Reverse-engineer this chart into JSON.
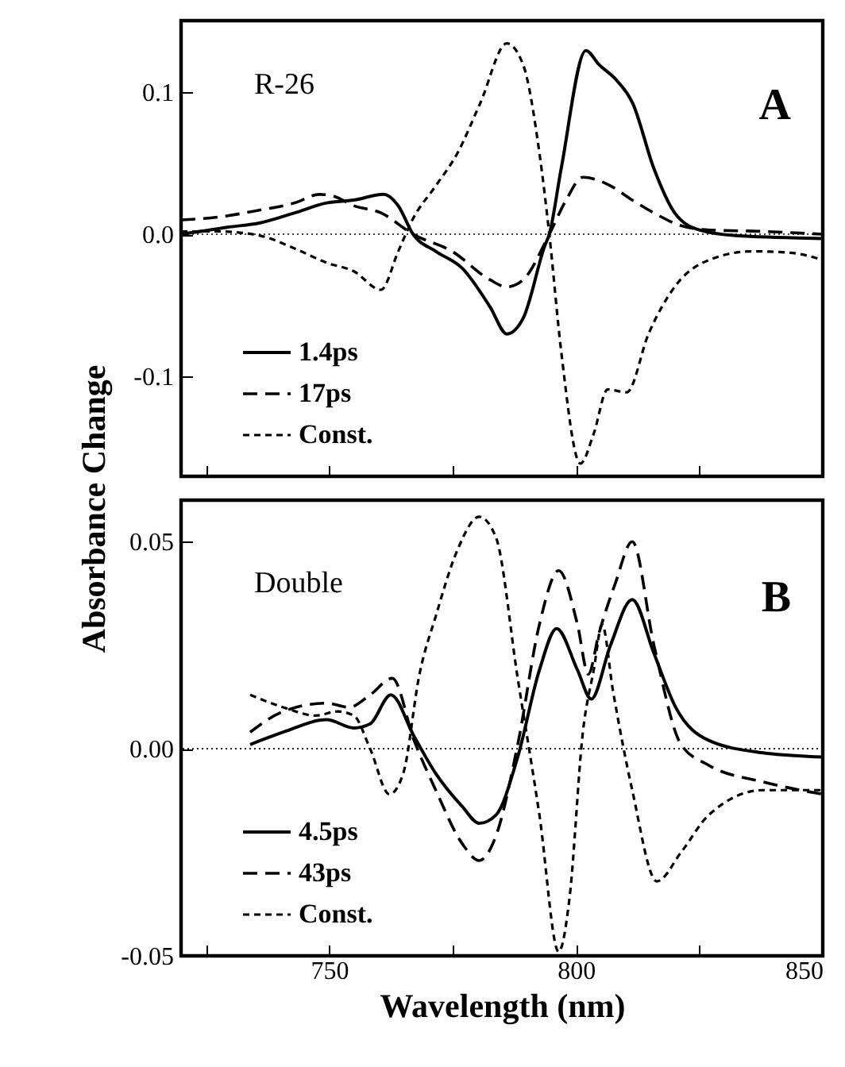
{
  "chart_data": [
    {
      "type": "line",
      "ylabel": "Absorbance Change",
      "annotations": [
        "R-26",
        "A"
      ],
      "xlim": [
        720,
        850
      ],
      "xticks": [
        {
          "value": 725,
          "label": null
        },
        750,
        {
          "value": 775,
          "label": null
        },
        800,
        {
          "value": 825,
          "label": null
        },
        850
      ],
      "ylim": [
        -0.17,
        0.15
      ],
      "yticks": [
        -0.1,
        {
          "value": 0,
          "label": "0.0"
        },
        0.1
      ],
      "tick_labels": "y",
      "legend": "bottom left",
      "grid": false,
      "ref_lines": [
        {
          "axis": "y",
          "value": 0,
          "label": null,
          "color": "#000000",
          "line_style": "dotted"
        }
      ],
      "series": [
        {
          "name": "1.4ps",
          "color": "#000000",
          "line_style": "solid",
          "x": [
            720,
            729.6,
            736,
            743,
            749.5,
            755,
            761,
            764,
            767,
            771.6,
            777,
            782.6,
            786,
            789.3,
            793.7,
            794.6,
            797,
            802,
            804.7,
            808,
            811.5,
            815.8,
            820,
            825,
            832.4,
            850
          ],
          "values": [
            0.0,
            0.005,
            0.008,
            0.015,
            0.022,
            0.024,
            0.028,
            0.02,
            0.0,
            -0.012,
            -0.024,
            -0.051,
            -0.07,
            -0.059,
            -0.008,
            0.0,
            0.046,
            0.129,
            0.119,
            0.109,
            0.092,
            0.046,
            0.015,
            0.003,
            -0.001,
            -0.003
          ]
        },
        {
          "name": "17ps",
          "color": "#000000",
          "line_style": "dashed",
          "x": [
            720,
            727.4,
            736,
            743,
            748,
            750.6,
            755,
            760.5,
            767,
            774.9,
            782.6,
            786,
            789.3,
            794.6,
            798,
            801.4,
            807,
            811.4,
            815.8,
            821.3,
            827,
            838,
            850
          ],
          "values": [
            0.01,
            0.012,
            0.017,
            0.022,
            0.028,
            0.027,
            0.02,
            0.015,
            0.0,
            -0.012,
            -0.032,
            -0.037,
            -0.032,
            0.0,
            0.024,
            0.04,
            0.034,
            0.024,
            0.015,
            0.006,
            0.003,
            0.002,
            0.0
          ]
        },
        {
          "name": "Const.",
          "color": "#000000",
          "line_style": "dotted",
          "x": [
            720,
            727.4,
            736,
            743,
            749.5,
            755,
            760.5,
            764,
            767,
            771.6,
            776,
            780.6,
            786,
            789.3,
            792.6,
            794.6,
            797,
            800.9,
            803.6,
            806.4,
            810.3,
            814.7,
            820.2,
            827,
            835.7,
            843.4,
            850
          ],
          "values": [
            0.002,
            0.002,
            -0.001,
            -0.01,
            -0.02,
            -0.026,
            -0.039,
            -0.012,
            0.011,
            0.034,
            0.057,
            0.092,
            0.134,
            0.119,
            0.057,
            0.0,
            -0.082,
            -0.161,
            -0.14,
            -0.109,
            -0.111,
            -0.07,
            -0.036,
            -0.018,
            -0.012,
            -0.013,
            -0.018
          ]
        }
      ]
    },
    {
      "type": "line",
      "xlabel": "Wavelength (nm)",
      "annotations": [
        "Double",
        "B"
      ],
      "xlim": [
        720,
        850
      ],
      "xticks": [
        {
          "value": 725,
          "label": null
        },
        750,
        {
          "value": 775,
          "label": null
        },
        800,
        {
          "value": 825,
          "label": null
        },
        850
      ],
      "ylim": [
        -0.05,
        0.06
      ],
      "yticks": [
        -0.05,
        {
          "value": 0,
          "label": "0.00"
        },
        0.05
      ],
      "legend": "bottom left",
      "grid": false,
      "ref_lines": [
        {
          "axis": "y",
          "value": 0,
          "label": null,
          "color": "#000000",
          "line_style": "dotted"
        }
      ],
      "series": [
        {
          "name": "4.5ps",
          "color": "#000000",
          "line_style": "solid",
          "x": [
            734,
            740.7,
            749.5,
            755,
            758.3,
            762.5,
            767.2,
            771.6,
            777,
            780.4,
            783.8,
            788.2,
            792.6,
            796.1,
            800.3,
            803.1,
            807,
            811.4,
            815.8,
            820.2,
            826.9,
            837.9,
            850
          ],
          "values": [
            0.001,
            0.004,
            0.007,
            0.005,
            0.006,
            0.013,
            0.003,
            -0.006,
            -0.014,
            -0.018,
            -0.016,
            -0.002,
            0.019,
            0.029,
            0.019,
            0.012,
            0.025,
            0.036,
            0.023,
            0.01,
            0.002,
            -0.001,
            -0.002
          ]
        },
        {
          "name": "43ps",
          "color": "#000000",
          "line_style": "dashed",
          "x": [
            734,
            740.7,
            749.5,
            754,
            758.3,
            762.8,
            767.2,
            771.6,
            777,
            780.4,
            783.8,
            788.2,
            792.6,
            796.5,
            800.3,
            802.5,
            804.7,
            808,
            811.4,
            815.8,
            821.3,
            826.9,
            837.9,
            850
          ],
          "values": [
            0.004,
            0.009,
            0.011,
            0.01,
            0.013,
            0.017,
            0.002,
            -0.01,
            -0.023,
            -0.027,
            -0.021,
            0.001,
            0.03,
            0.043,
            0.03,
            0.018,
            0.028,
            0.04,
            0.05,
            0.025,
            0.001,
            -0.004,
            -0.008,
            -0.011
          ]
        },
        {
          "name": "Const.",
          "color": "#000000",
          "line_style": "dotted",
          "x": [
            734,
            740.7,
            747.3,
            751.7,
            755,
            758.3,
            762.2,
            765,
            768.3,
            771.6,
            776,
            780.4,
            783.8,
            788.2,
            792.6,
            796.5,
            798.7,
            801.4,
            803.6,
            805.3,
            807.5,
            811.4,
            816.4,
            821.3,
            826.9,
            837.9,
            850
          ],
          "values": [
            0.013,
            0.01,
            0.008,
            0.009,
            0.008,
            0.0,
            -0.011,
            -0.006,
            0.018,
            0.032,
            0.048,
            0.056,
            0.051,
            0.017,
            -0.016,
            -0.049,
            -0.036,
            0.004,
            0.019,
            0.03,
            0.014,
            -0.01,
            -0.032,
            -0.025,
            -0.016,
            -0.01,
            -0.01
          ]
        }
      ]
    }
  ]
}
